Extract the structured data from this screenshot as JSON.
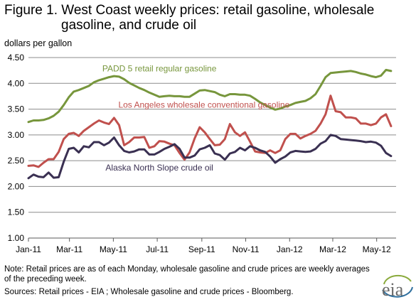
{
  "title_line1": "Figure 1.  West Coast weekly prices: retail gasoline, wholesale",
  "title_line2": "gasoline, and crude oil",
  "units_label": "dollars per gallon",
  "note": "Note:  Retail prices are as of each Monday, wholesale gasoline and crude  prices are weekly averages of the preceding week.",
  "sources": "Sources:  Retail  prices - EIA ;  Wholesale gasoline and crude  prices - Bloomberg.",
  "logo_text": "eia",
  "chart_data": {
    "type": "line",
    "title": "Figure 1.  West Coast weekly prices: retail gasoline, wholesale gasoline, and crude oil",
    "ylabel": "dollars per gallon",
    "xlabel": "",
    "ylim": [
      1.0,
      4.5
    ],
    "yticks": [
      "1.00",
      "1.50",
      "2.00",
      "2.50",
      "3.00",
      "3.50",
      "4.00",
      "4.50"
    ],
    "xlim": [
      "2011-01-03",
      "2012-05-28"
    ],
    "xticks": [
      {
        "date": "2011-01-03",
        "label": "Jan-11"
      },
      {
        "date": "2011-03-01",
        "label": "Mar-11"
      },
      {
        "date": "2011-05-01",
        "label": "May-11"
      },
      {
        "date": "2011-07-01",
        "label": "Jul-11"
      },
      {
        "date": "2011-09-01",
        "label": "Sep-11"
      },
      {
        "date": "2011-11-01",
        "label": "Nov-11"
      },
      {
        "date": "2012-01-01",
        "label": "Jan-12"
      },
      {
        "date": "2012-03-01",
        "label": "Mar-12"
      },
      {
        "date": "2012-05-01",
        "label": "May-12"
      }
    ],
    "grid": "horizontal",
    "legend": "inline labels",
    "series": [
      {
        "name": "PADD 5 retail regular gasoline",
        "color": "#77963c",
        "label_anchor": [
          "2011-07-04",
          4.23
        ],
        "points": [
          [
            "2011-01-03",
            3.25
          ],
          [
            "2011-01-10",
            3.28
          ],
          [
            "2011-01-17",
            3.28
          ],
          [
            "2011-01-24",
            3.29
          ],
          [
            "2011-01-31",
            3.32
          ],
          [
            "2011-02-07",
            3.37
          ],
          [
            "2011-02-14",
            3.45
          ],
          [
            "2011-02-21",
            3.58
          ],
          [
            "2011-02-28",
            3.73
          ],
          [
            "2011-03-07",
            3.84
          ],
          [
            "2011-03-14",
            3.87
          ],
          [
            "2011-03-21",
            3.91
          ],
          [
            "2011-03-28",
            3.95
          ],
          [
            "2011-04-04",
            4.02
          ],
          [
            "2011-04-11",
            4.06
          ],
          [
            "2011-04-18",
            4.09
          ],
          [
            "2011-04-25",
            4.12
          ],
          [
            "2011-05-02",
            4.14
          ],
          [
            "2011-05-09",
            4.13
          ],
          [
            "2011-05-16",
            4.08
          ],
          [
            "2011-05-23",
            4.01
          ],
          [
            "2011-05-30",
            3.96
          ],
          [
            "2011-06-06",
            3.91
          ],
          [
            "2011-06-13",
            3.87
          ],
          [
            "2011-06-20",
            3.82
          ],
          [
            "2011-06-27",
            3.78
          ],
          [
            "2011-07-04",
            3.74
          ],
          [
            "2011-07-11",
            3.75
          ],
          [
            "2011-07-18",
            3.76
          ],
          [
            "2011-07-25",
            3.75
          ],
          [
            "2011-08-01",
            3.75
          ],
          [
            "2011-08-08",
            3.74
          ],
          [
            "2011-08-15",
            3.74
          ],
          [
            "2011-08-22",
            3.8
          ],
          [
            "2011-08-29",
            3.86
          ],
          [
            "2011-09-05",
            3.87
          ],
          [
            "2011-09-12",
            3.85
          ],
          [
            "2011-09-19",
            3.83
          ],
          [
            "2011-09-26",
            3.78
          ],
          [
            "2011-10-03",
            3.75
          ],
          [
            "2011-10-10",
            3.79
          ],
          [
            "2011-10-17",
            3.79
          ],
          [
            "2011-10-24",
            3.78
          ],
          [
            "2011-10-31",
            3.78
          ],
          [
            "2011-11-07",
            3.76
          ],
          [
            "2011-11-14",
            3.7
          ],
          [
            "2011-11-21",
            3.63
          ],
          [
            "2011-11-28",
            3.58
          ],
          [
            "2011-12-05",
            3.53
          ],
          [
            "2011-12-12",
            3.49
          ],
          [
            "2011-12-19",
            3.51
          ],
          [
            "2011-12-26",
            3.55
          ],
          [
            "2012-01-02",
            3.58
          ],
          [
            "2012-01-09",
            3.62
          ],
          [
            "2012-01-16",
            3.64
          ],
          [
            "2012-01-23",
            3.66
          ],
          [
            "2012-01-30",
            3.71
          ],
          [
            "2012-02-06",
            3.79
          ],
          [
            "2012-02-13",
            3.95
          ],
          [
            "2012-02-20",
            4.12
          ],
          [
            "2012-02-27",
            4.2
          ],
          [
            "2012-03-05",
            4.21
          ],
          [
            "2012-03-12",
            4.22
          ],
          [
            "2012-03-19",
            4.23
          ],
          [
            "2012-03-26",
            4.24
          ],
          [
            "2012-04-02",
            4.22
          ],
          [
            "2012-04-09",
            4.19
          ],
          [
            "2012-04-16",
            4.17
          ],
          [
            "2012-04-23",
            4.14
          ],
          [
            "2012-04-30",
            4.12
          ],
          [
            "2012-05-07",
            4.15
          ],
          [
            "2012-05-14",
            4.26
          ],
          [
            "2012-05-21",
            4.24
          ]
        ]
      },
      {
        "name": "Los Angeles wholesale conventional gasoline",
        "color": "#c0504d",
        "label_anchor": [
          "2011-09-04",
          3.53
        ],
        "points": [
          [
            "2011-01-03",
            2.4
          ],
          [
            "2011-01-10",
            2.41
          ],
          [
            "2011-01-17",
            2.38
          ],
          [
            "2011-01-24",
            2.46
          ],
          [
            "2011-01-31",
            2.53
          ],
          [
            "2011-02-07",
            2.53
          ],
          [
            "2011-02-14",
            2.67
          ],
          [
            "2011-02-21",
            2.92
          ],
          [
            "2011-02-28",
            3.02
          ],
          [
            "2011-03-07",
            3.04
          ],
          [
            "2011-03-14",
            2.98
          ],
          [
            "2011-03-21",
            3.08
          ],
          [
            "2011-03-28",
            3.15
          ],
          [
            "2011-04-04",
            3.22
          ],
          [
            "2011-04-11",
            3.28
          ],
          [
            "2011-04-18",
            3.24
          ],
          [
            "2011-04-25",
            3.21
          ],
          [
            "2011-05-02",
            3.33
          ],
          [
            "2011-05-09",
            3.19
          ],
          [
            "2011-05-16",
            2.8
          ],
          [
            "2011-05-23",
            2.86
          ],
          [
            "2011-05-30",
            2.95
          ],
          [
            "2011-06-06",
            2.95
          ],
          [
            "2011-06-13",
            2.96
          ],
          [
            "2011-06-20",
            2.75
          ],
          [
            "2011-06-27",
            2.78
          ],
          [
            "2011-07-04",
            2.88
          ],
          [
            "2011-07-11",
            2.87
          ],
          [
            "2011-07-18",
            2.83
          ],
          [
            "2011-07-25",
            2.8
          ],
          [
            "2011-08-01",
            2.65
          ],
          [
            "2011-08-08",
            2.52
          ],
          [
            "2011-08-15",
            2.66
          ],
          [
            "2011-08-22",
            2.93
          ],
          [
            "2011-08-29",
            3.15
          ],
          [
            "2011-09-05",
            3.05
          ],
          [
            "2011-09-12",
            2.92
          ],
          [
            "2011-09-19",
            2.8
          ],
          [
            "2011-09-26",
            2.81
          ],
          [
            "2011-10-03",
            2.92
          ],
          [
            "2011-10-10",
            3.21
          ],
          [
            "2011-10-17",
            3.05
          ],
          [
            "2011-10-24",
            2.98
          ],
          [
            "2011-10-31",
            3.05
          ],
          [
            "2011-11-07",
            2.87
          ],
          [
            "2011-11-14",
            2.68
          ],
          [
            "2011-11-21",
            2.66
          ],
          [
            "2011-11-28",
            2.65
          ],
          [
            "2011-12-05",
            2.7
          ],
          [
            "2011-12-12",
            2.65
          ],
          [
            "2011-12-19",
            2.7
          ],
          [
            "2011-12-26",
            2.92
          ],
          [
            "2012-01-02",
            3.02
          ],
          [
            "2012-01-09",
            3.02
          ],
          [
            "2012-01-16",
            2.93
          ],
          [
            "2012-01-23",
            2.98
          ],
          [
            "2012-01-30",
            3.02
          ],
          [
            "2012-02-06",
            3.08
          ],
          [
            "2012-02-13",
            3.22
          ],
          [
            "2012-02-20",
            3.4
          ],
          [
            "2012-02-27",
            3.76
          ],
          [
            "2012-03-05",
            3.46
          ],
          [
            "2012-03-12",
            3.44
          ],
          [
            "2012-03-19",
            3.34
          ],
          [
            "2012-03-26",
            3.34
          ],
          [
            "2012-04-02",
            3.32
          ],
          [
            "2012-04-09",
            3.22
          ],
          [
            "2012-04-16",
            3.22
          ],
          [
            "2012-04-23",
            3.19
          ],
          [
            "2012-04-30",
            3.22
          ],
          [
            "2012-05-07",
            3.34
          ],
          [
            "2012-05-14",
            3.4
          ],
          [
            "2012-05-21",
            3.17
          ]
        ]
      },
      {
        "name": "Alaska North Slope  crude oil",
        "color": "#3a3052",
        "label_anchor": [
          "2011-07-04",
          2.31
        ],
        "points": [
          [
            "2011-01-03",
            2.16
          ],
          [
            "2011-01-10",
            2.23
          ],
          [
            "2011-01-17",
            2.19
          ],
          [
            "2011-01-24",
            2.18
          ],
          [
            "2011-01-31",
            2.27
          ],
          [
            "2011-02-07",
            2.17
          ],
          [
            "2011-02-14",
            2.18
          ],
          [
            "2011-02-21",
            2.48
          ],
          [
            "2011-02-28",
            2.73
          ],
          [
            "2011-03-07",
            2.75
          ],
          [
            "2011-03-14",
            2.66
          ],
          [
            "2011-03-21",
            2.78
          ],
          [
            "2011-03-28",
            2.76
          ],
          [
            "2011-04-04",
            2.86
          ],
          [
            "2011-04-11",
            2.86
          ],
          [
            "2011-04-18",
            2.8
          ],
          [
            "2011-04-25",
            2.85
          ],
          [
            "2011-05-02",
            2.95
          ],
          [
            "2011-05-09",
            2.8
          ],
          [
            "2011-05-16",
            2.69
          ],
          [
            "2011-05-23",
            2.66
          ],
          [
            "2011-05-30",
            2.68
          ],
          [
            "2011-06-06",
            2.72
          ],
          [
            "2011-06-13",
            2.72
          ],
          [
            "2011-06-20",
            2.62
          ],
          [
            "2011-06-27",
            2.62
          ],
          [
            "2011-07-04",
            2.67
          ],
          [
            "2011-07-11",
            2.73
          ],
          [
            "2011-07-18",
            2.77
          ],
          [
            "2011-07-25",
            2.82
          ],
          [
            "2011-08-01",
            2.73
          ],
          [
            "2011-08-08",
            2.56
          ],
          [
            "2011-08-15",
            2.56
          ],
          [
            "2011-08-22",
            2.6
          ],
          [
            "2011-08-29",
            2.72
          ],
          [
            "2011-09-05",
            2.75
          ],
          [
            "2011-09-12",
            2.8
          ],
          [
            "2011-09-19",
            2.64
          ],
          [
            "2011-09-26",
            2.61
          ],
          [
            "2011-10-03",
            2.52
          ],
          [
            "2011-10-10",
            2.64
          ],
          [
            "2011-10-17",
            2.67
          ],
          [
            "2011-10-24",
            2.75
          ],
          [
            "2011-10-31",
            2.7
          ],
          [
            "2011-11-07",
            2.78
          ],
          [
            "2011-11-14",
            2.75
          ],
          [
            "2011-11-21",
            2.7
          ],
          [
            "2011-11-28",
            2.67
          ],
          [
            "2011-12-05",
            2.58
          ],
          [
            "2011-12-12",
            2.46
          ],
          [
            "2011-12-19",
            2.53
          ],
          [
            "2011-12-26",
            2.58
          ],
          [
            "2012-01-02",
            2.66
          ],
          [
            "2012-01-09",
            2.69
          ],
          [
            "2012-01-16",
            2.68
          ],
          [
            "2012-01-23",
            2.67
          ],
          [
            "2012-01-30",
            2.68
          ],
          [
            "2012-02-06",
            2.73
          ],
          [
            "2012-02-13",
            2.83
          ],
          [
            "2012-02-20",
            2.88
          ],
          [
            "2012-02-27",
            3.0
          ],
          [
            "2012-03-05",
            2.98
          ],
          [
            "2012-03-12",
            2.92
          ],
          [
            "2012-03-19",
            2.91
          ],
          [
            "2012-03-26",
            2.9
          ],
          [
            "2012-04-02",
            2.89
          ],
          [
            "2012-04-09",
            2.88
          ],
          [
            "2012-04-16",
            2.86
          ],
          [
            "2012-04-23",
            2.87
          ],
          [
            "2012-04-30",
            2.85
          ],
          [
            "2012-05-07",
            2.79
          ],
          [
            "2012-05-14",
            2.65
          ],
          [
            "2012-05-21",
            2.59
          ]
        ]
      }
    ]
  }
}
